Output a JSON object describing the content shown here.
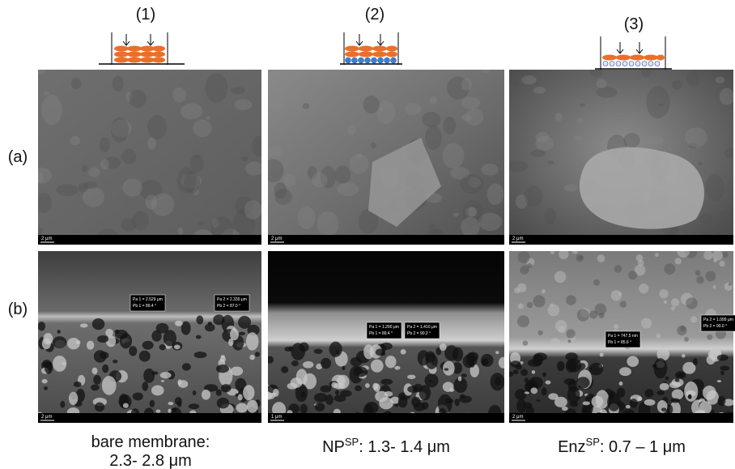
{
  "schematics": [
    {
      "label": "(1)"
    },
    {
      "label": "(2)"
    },
    {
      "label": "(3)"
    }
  ],
  "rows": [
    {
      "label": "(a)"
    },
    {
      "label": "(b)"
    }
  ],
  "panels": [
    {
      "scale": "2 μm"
    },
    {
      "scale": "2 μm"
    },
    {
      "scale": "2 μm"
    },
    {
      "scale": "2 μm",
      "measures": [
        [
          "Pa 1 = 2.529 μm",
          "Pb 1 = 89.4 °"
        ],
        [
          "Pa 2 = 2.330 μm",
          "Pb 2 = 87.0 °"
        ]
      ]
    },
    {
      "scale": "1 μm",
      "measures": [
        [
          "Pa 1 = 1.290 μm",
          "Pb 1 = 89.4 °"
        ],
        [
          "Pa 2 = 1.410 μm",
          "Pb 2 = 90.2 °"
        ]
      ]
    },
    {
      "scale": "2 μm",
      "measures": [
        [
          "Pa 1 = 747.5 nm",
          "Pb 1 = 85.6 °"
        ],
        [
          "Pa 2 = 1.099 μm",
          "Pb 2 = 90.0 °"
        ]
      ]
    }
  ],
  "captions": [
    {
      "lines": [
        "bare membrane:",
        "2.3- 2.8 μm"
      ]
    },
    {
      "main": "NP",
      "sup": "SP",
      "rest": ": 1.3- 1.4 μm"
    },
    {
      "main": "Enz",
      "sup": "SP",
      "rest": ": 0.7 – 1 μm"
    }
  ]
}
